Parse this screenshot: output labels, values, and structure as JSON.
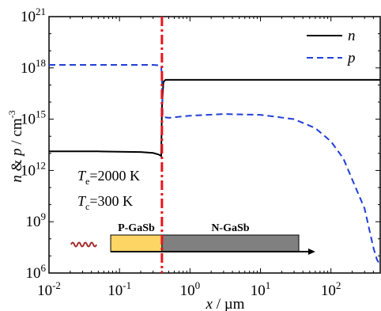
{
  "chart_data": {
    "type": "line",
    "x_scale": "log",
    "y_scale": "log",
    "xlim": [
      0.01,
      500
    ],
    "ylim": [
      1000000.0,
      1e+21
    ],
    "xlabel": {
      "var": "x",
      "unit": " / µm"
    },
    "ylabel": {
      "var1": "n",
      "amp": " & ",
      "var2": "p",
      "unit": " / cm",
      "unit_sup": "-3"
    },
    "x_ticks": [
      {
        "value": 0.01,
        "base": "10",
        "exp": "-2"
      },
      {
        "value": 0.1,
        "base": "10",
        "exp": "-1"
      },
      {
        "value": 1,
        "base": "10",
        "exp": "0"
      },
      {
        "value": 10,
        "base": "10",
        "exp": "1"
      },
      {
        "value": 100,
        "base": "10",
        "exp": "2"
      }
    ],
    "y_ticks": [
      {
        "value": 1000000.0,
        "base": "10",
        "exp": "6"
      },
      {
        "value": 1000000000.0,
        "base": "10",
        "exp": "9"
      },
      {
        "value": 1000000000000.0,
        "base": "10",
        "exp": "12"
      },
      {
        "value": 1000000000000000.0,
        "base": "10",
        "exp": "15"
      },
      {
        "value": 1e+18,
        "base": "10",
        "exp": "18"
      },
      {
        "value": 1e+21,
        "base": "10",
        "exp": "21"
      }
    ],
    "series": [
      {
        "name": "n",
        "color": "#000000",
        "dash": "solid",
        "x": [
          0.01,
          0.05,
          0.1,
          0.2,
          0.3,
          0.36,
          0.39,
          0.4,
          0.42,
          0.45,
          0.5,
          1,
          10,
          100,
          500
        ],
        "y": [
          13000000000000.0,
          13000000000000.0,
          12500000000000.0,
          12000000000000.0,
          10500000000000.0,
          8500000000000.0,
          7000000000000.0,
          5000000000000000.0,
          1.5e+17,
          2e+17,
          2e+17,
          2e+17,
          2e+17,
          2e+17,
          2e+17
        ]
      },
      {
        "name": "p",
        "color": "#1f3fd6",
        "dash": "dashed",
        "x": [
          0.01,
          0.1,
          0.3,
          0.37,
          0.39,
          0.4,
          0.41,
          0.43,
          0.5,
          1,
          3,
          10,
          30,
          60,
          100,
          150,
          200,
          300,
          400,
          450,
          500
        ],
        "y": [
          1.5e+18,
          1.5e+18,
          1.5e+18,
          1.4e+18,
          1e+18,
          4e+17,
          1500000000000000.0,
          1300000000000000.0,
          1200000000000000.0,
          1600000000000000.0,
          2000000000000000.0,
          1800000000000000.0,
          1000000000000000.0,
          300000000000000.0,
          50000000000000.0,
          5000000000000.0,
          300000000000.0,
          6000000000.0,
          30000000.0,
          6000000.0,
          3000000.0
        ]
      }
    ],
    "junction": {
      "x": 0.4,
      "color": "#e8141c"
    },
    "legend": {
      "position": "top-right"
    },
    "temps": [
      {
        "sym": "T",
        "sub": "e",
        "val": "=2000 K"
      },
      {
        "sym": "T",
        "sub": "c",
        "val": "=300 K"
      }
    ],
    "device": {
      "p_label": "P-GaSb",
      "n_label": "N-GaSb",
      "p_color": "#fcd565",
      "n_color": "#808080",
      "x_start": 0.075,
      "x_junction": 0.4,
      "x_end": 35,
      "x_arrow_end": 60
    }
  },
  "colors": {
    "wave": "#a52a2a"
  }
}
